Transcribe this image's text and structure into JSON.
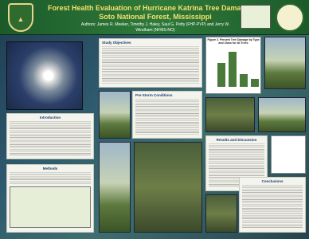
{
  "header": {
    "title": "Forest Health Evaluation of Hurricane Katrina Tree Damage: De Soto National Forest, Mississippi",
    "authors": "Authors: James R. Meeker, Timothy J. Haley, Saul G. Petty (FHP-PVP) and Jerry W. Windham (NFMS-NO)"
  },
  "sections": [
    {
      "heading": "Introduction"
    },
    {
      "heading": "Methods"
    },
    {
      "heading": "Study Objectives"
    },
    {
      "heading": "Pre-Storm Conditions"
    },
    {
      "heading": "Results and Discussion"
    },
    {
      "heading": "Conclusions"
    }
  ],
  "figures": [
    {
      "caption": "Figure 2. Percent Tree Damage by Type and Class for all Trees"
    }
  ]
}
